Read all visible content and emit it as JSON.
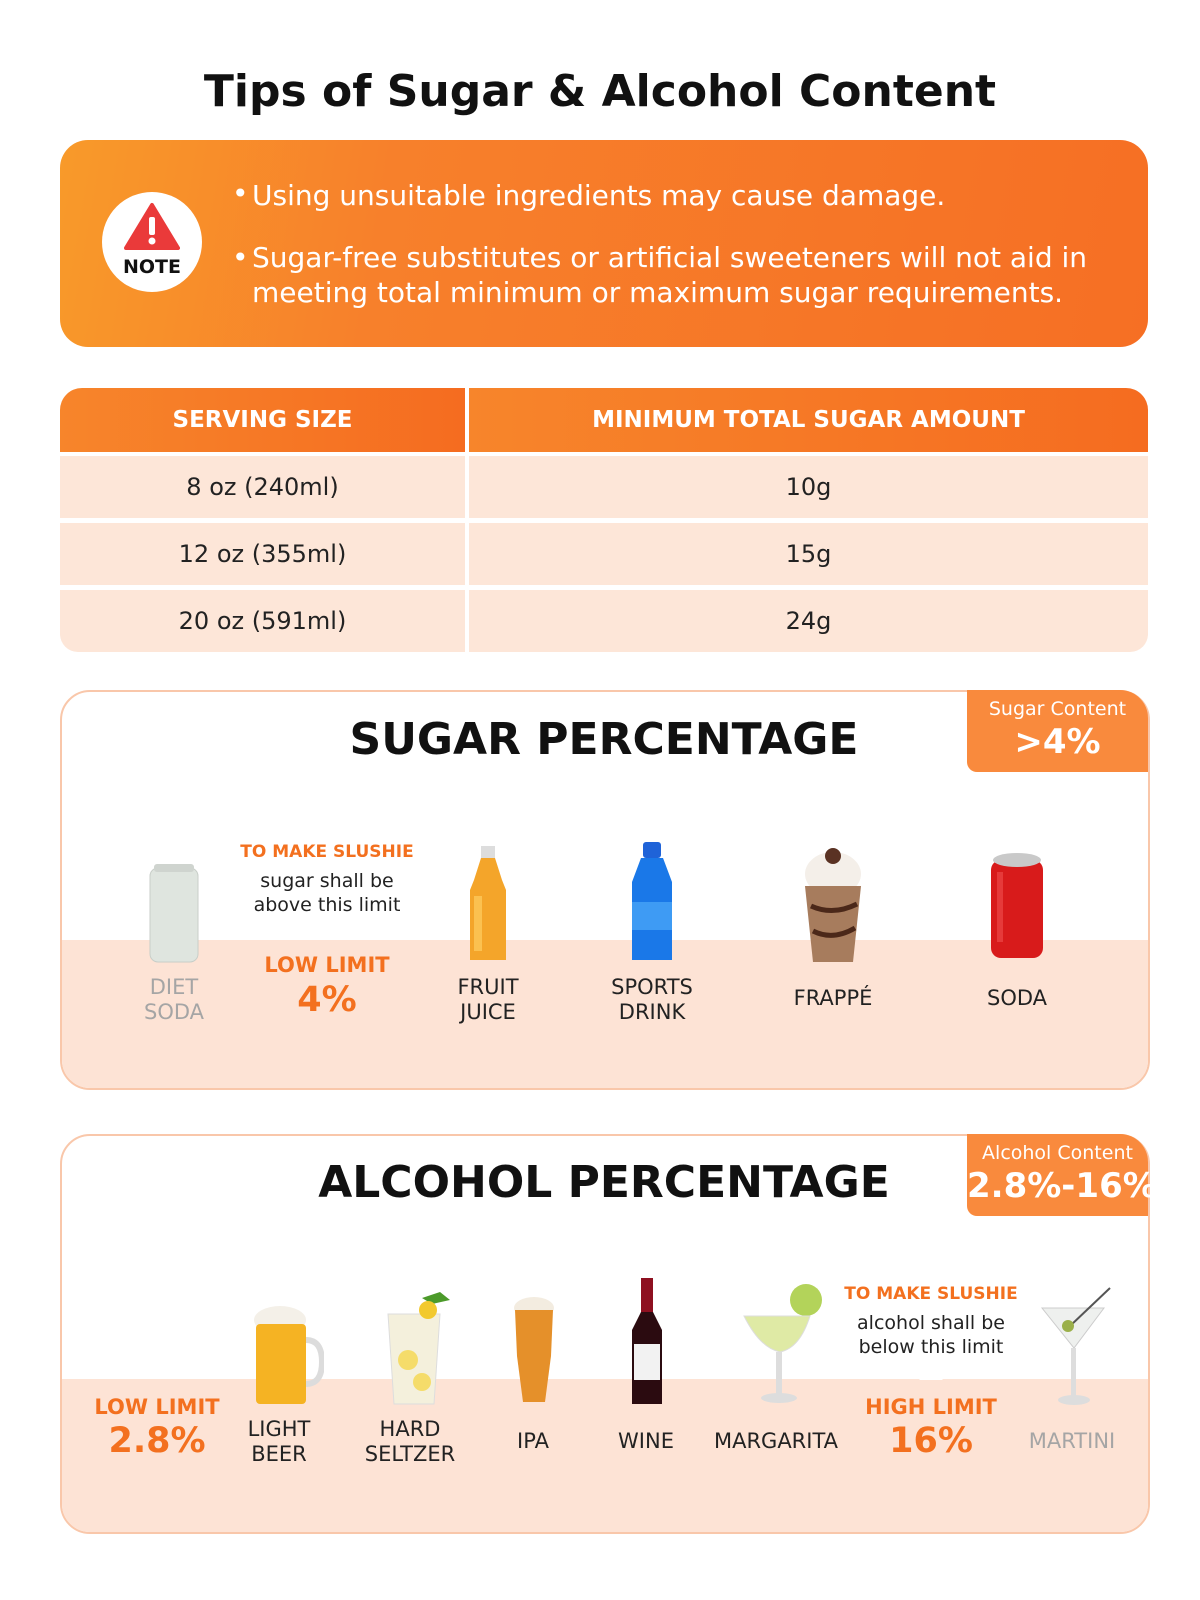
{
  "title": "Tips of Sugar & Alcohol Content",
  "note": {
    "badge": "NOTE",
    "items": [
      "Using unsuitable ingredients may cause damage.",
      "Sugar-free substitutes or artificial sweeteners will not aid in meeting total minimum or maximum sugar requirements."
    ]
  },
  "table": {
    "headers": [
      "SERVING SIZE",
      "MINIMUM TOTAL SUGAR AMOUNT"
    ],
    "rows": [
      [
        "8 oz (240ml)",
        "10g"
      ],
      [
        "12 oz (355ml)",
        "15g"
      ],
      [
        "20 oz (591ml)",
        "24g"
      ]
    ]
  },
  "sugar": {
    "title": "SUGAR PERCENTAGE",
    "badge_label": "Sugar Content",
    "badge_value": ">4%",
    "limit_note": {
      "heading": "TO MAKE SLUSHIE",
      "lines": [
        "sugar shall be",
        "above this limit"
      ]
    },
    "limit": {
      "label": "LOW LIMIT",
      "value": "4%"
    },
    "drinks": [
      "DIET SODA",
      "FRUIT JUICE",
      "SPORTS DRINK",
      "FRAPPÉ",
      "SODA"
    ]
  },
  "alcohol": {
    "title": "ALCOHOL PERCENTAGE",
    "badge_label": "Alcohol Content",
    "badge_value": "2.8%-16%",
    "low_limit": {
      "label": "LOW LIMIT",
      "value": "2.8%"
    },
    "limit_note": {
      "heading": "TO MAKE SLUSHIE",
      "lines": [
        "alcohol shall be",
        "below this limit"
      ]
    },
    "high_limit": {
      "label": "HIGH LIMIT",
      "value": "16%"
    },
    "drinks": [
      "LIGHT BEER",
      "HARD SELTZER",
      "IPA",
      "WINE",
      "MARGARITA",
      "MARTINI"
    ]
  }
}
